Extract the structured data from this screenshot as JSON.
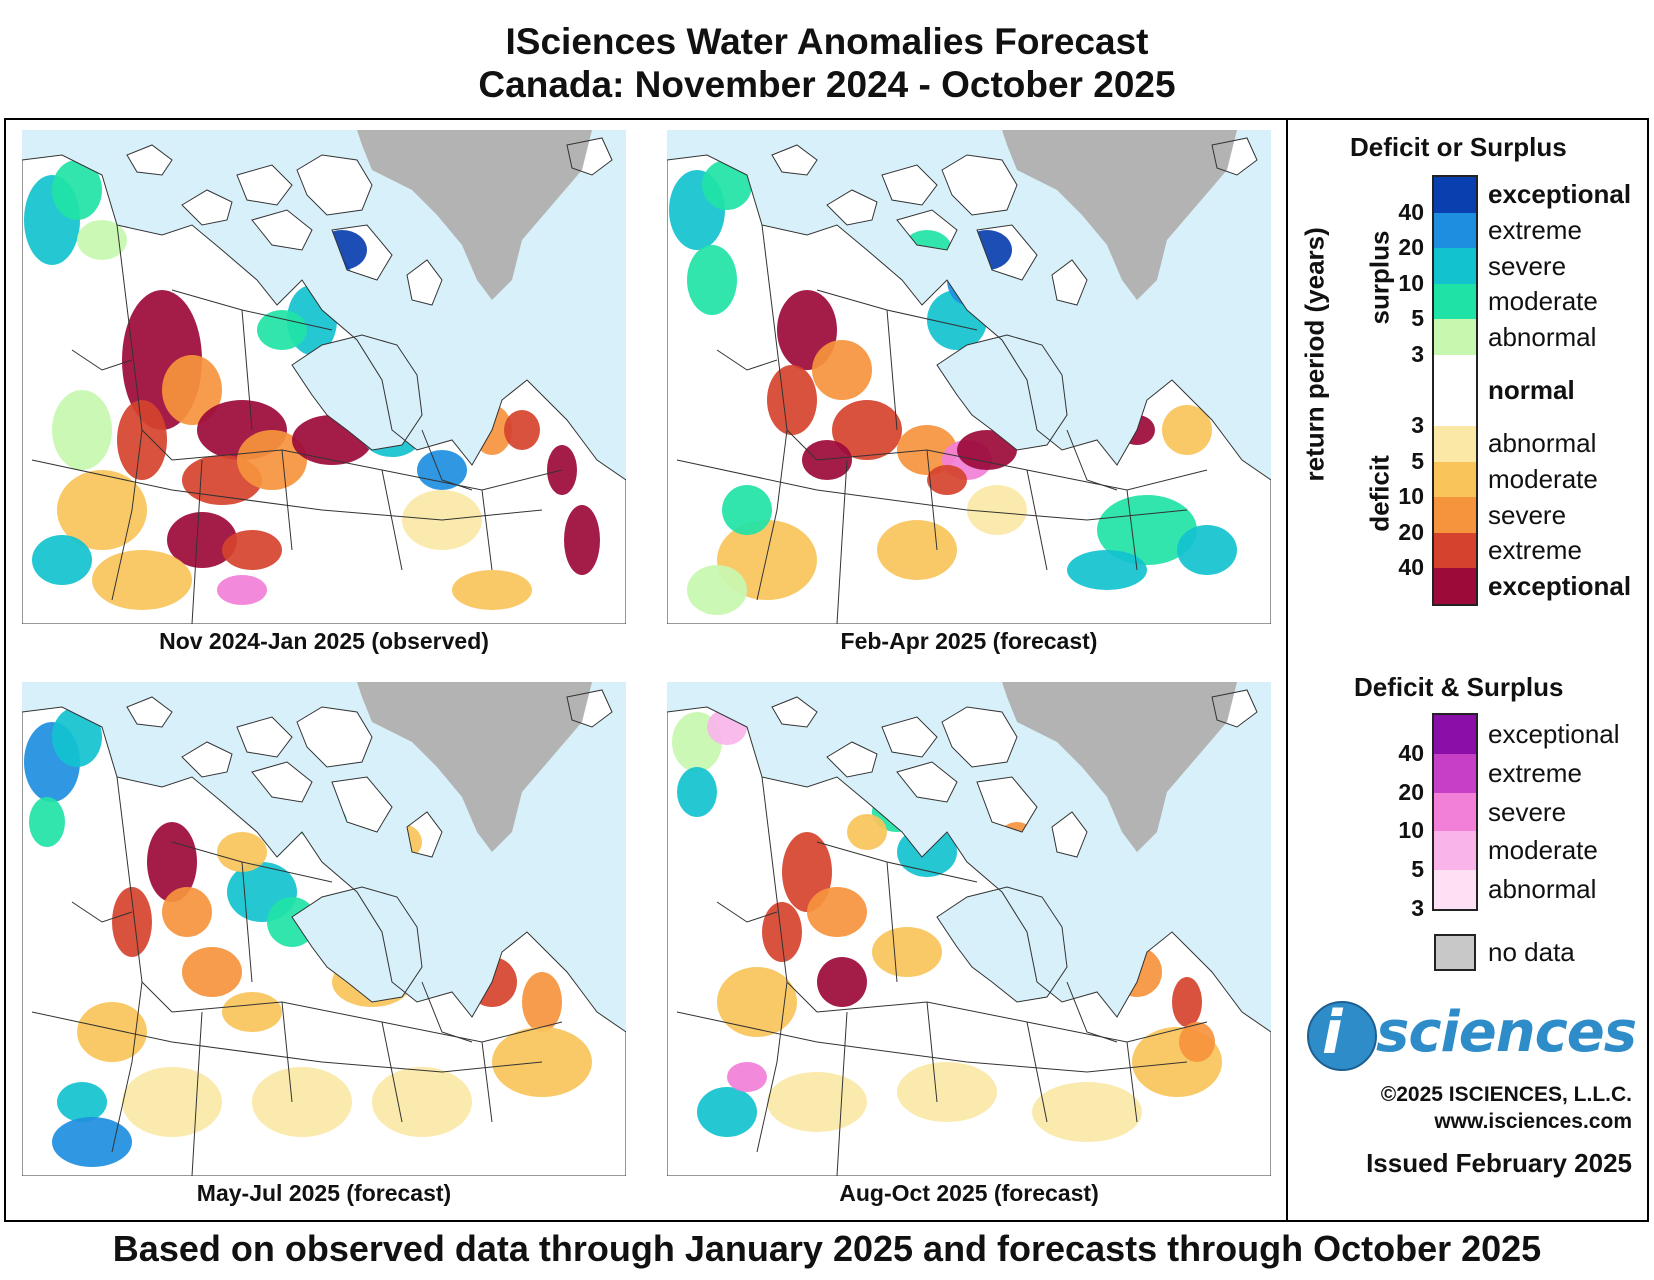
{
  "header": {
    "title_line1": "ISciences Water Anomalies Forecast",
    "title_line2": "Canada: November 2024 - October 2025"
  },
  "footer": "Based on observed data through January 2025 and forecasts through October 2025",
  "panels": [
    {
      "caption": "Nov 2024-Jan 2025 (observed)"
    },
    {
      "caption": "Feb-Apr 2025 (forecast)"
    },
    {
      "caption": "May-Jul 2025 (forecast)"
    },
    {
      "caption": "Aug-Oct 2025 (forecast)"
    }
  ],
  "legend": {
    "title1": "Deficit or Surplus",
    "axis_label": "return period (years)",
    "surplus_label": "surplus",
    "deficit_label": "deficit",
    "surplus": [
      {
        "label": "exceptional",
        "color": "#0a3fb0"
      },
      {
        "label": "extreme",
        "color": "#1e8fe0"
      },
      {
        "label": "severe",
        "color": "#12c2cf"
      },
      {
        "label": "moderate",
        "color": "#1fe3a6"
      },
      {
        "label": "abnormal",
        "color": "#c8f7b0"
      }
    ],
    "normal": {
      "label": "normal",
      "color": "#ffffff"
    },
    "deficit": [
      {
        "label": "abnormal",
        "color": "#fbe8a6"
      },
      {
        "label": "moderate",
        "color": "#f9c45a"
      },
      {
        "label": "severe",
        "color": "#f6943d"
      },
      {
        "label": "extreme",
        "color": "#d5432e"
      },
      {
        "label": "exceptional",
        "color": "#9c0a3a"
      }
    ],
    "surplus_ticks": [
      "40",
      "20",
      "10",
      "5",
      "3"
    ],
    "deficit_ticks": [
      "3",
      "5",
      "10",
      "20",
      "40"
    ],
    "title2": "Deficit & Surplus",
    "both": [
      {
        "label": "exceptional",
        "color": "#8a0ea8"
      },
      {
        "label": "extreme",
        "color": "#c63fc6"
      },
      {
        "label": "severe",
        "color": "#f27fd8"
      },
      {
        "label": "moderate",
        "color": "#f9b5ea"
      },
      {
        "label": "abnormal",
        "color": "#fde0f3"
      }
    ],
    "both_ticks": [
      "40",
      "20",
      "10",
      "5",
      "3"
    ],
    "nodata": {
      "label": "no data",
      "color": "#c8c8c8"
    }
  },
  "branding": {
    "logo_letter": "i",
    "logo_word": "sciences",
    "copyright": "©2025 ISCIENCES, L.L.C.",
    "website": "www.isciences.com",
    "issued": "Issued February 2025"
  },
  "map_colors": {
    "water": "#d8f0fa",
    "land": "#ffffff",
    "greenland": "#b3b3b3",
    "border": "#333333"
  }
}
